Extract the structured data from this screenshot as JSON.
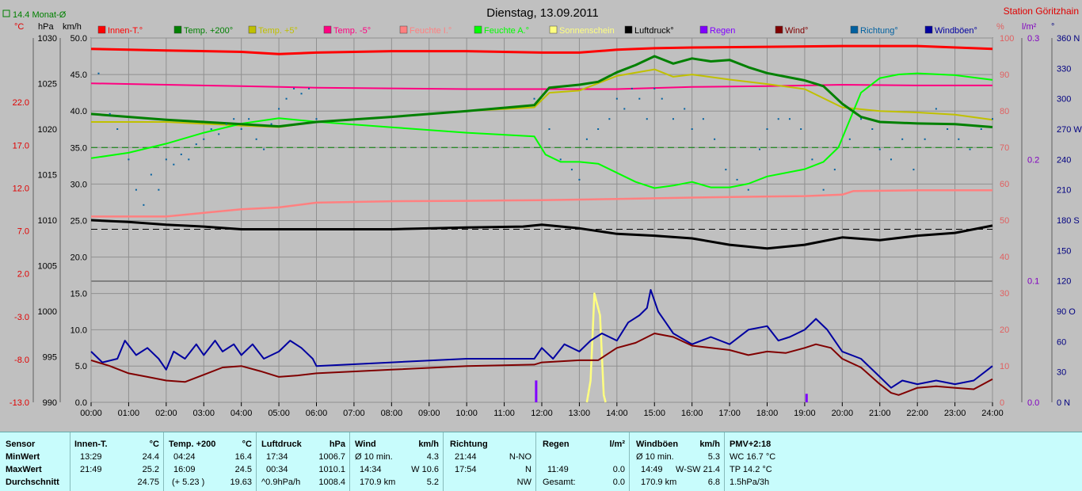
{
  "header": {
    "title": "Dienstag, 13.09.2011",
    "station": "Station Göritzhain",
    "monthly_avg": "14.4 Monat-Ø"
  },
  "units": {
    "celsius": "°C",
    "hpa": "hPa",
    "kmh": "km/h",
    "percent": "%",
    "rain": "l/m²",
    "deg": "°"
  },
  "legend": [
    {
      "label": "Innen-T.°",
      "color": "#ff0000"
    },
    {
      "label": "Temp. +200°",
      "color": "#008000"
    },
    {
      "label": "Temp. +5°",
      "color": "#c0c000"
    },
    {
      "label": "Temp. -5°",
      "color": "#ff0080"
    },
    {
      "label": "Feuchte I.°",
      "color": "#ff8080"
    },
    {
      "label": "Feuchte A.°",
      "color": "#00ff00"
    },
    {
      "label": "Sonnenschein",
      "color": "#ffff80"
    },
    {
      "label": "Luftdruck°",
      "color": "#000000"
    },
    {
      "label": "Regen",
      "color": "#8000ff"
    },
    {
      "label": "Wind°",
      "color": "#800000"
    },
    {
      "label": "Richtung°",
      "color": "#0060a0"
    },
    {
      "label": "Windböen°",
      "color": "#0000a0"
    }
  ],
  "chart_data": {
    "type": "line",
    "title": "Dienstag, 13.09.2011",
    "x_range": [
      0,
      24
    ],
    "x_ticks": [
      "00:00",
      "01:00",
      "02:00",
      "03:00",
      "04:00",
      "05:00",
      "06:00",
      "07:00",
      "08:00",
      "09:00",
      "10:00",
      "11:00",
      "12:00",
      "13:00",
      "14:00",
      "15:00",
      "16:00",
      "17:00",
      "18:00",
      "19:00",
      "20:00",
      "21:00",
      "22:00",
      "23:00",
      "24:00"
    ],
    "axes": {
      "temp_c": {
        "ticks": [
          "22.0",
          "17.0",
          "12.0",
          "7.0",
          "2.0",
          "-3.0",
          "-8.0",
          "-13.0"
        ],
        "range": [
          -13,
          29.5
        ]
      },
      "pressure_hpa": {
        "ticks": [
          "1030",
          "1025",
          "1020",
          "1015",
          "1010",
          "1005",
          "1000",
          "995",
          "990"
        ],
        "range": [
          990,
          1030
        ]
      },
      "upper_kmh": {
        "ticks": [
          "50.0",
          "45.0",
          "40.0",
          "35.0",
          "30.0",
          "25.0",
          "20.0"
        ],
        "range": [
          16.7,
          50
        ]
      },
      "lower_kmh": {
        "ticks": [
          "15.0",
          "10.0",
          "5.0",
          "0.0"
        ],
        "range": [
          0,
          16.7
        ]
      },
      "humidity_pct": {
        "ticks": [
          "100",
          "90",
          "80",
          "70",
          "60",
          "50",
          "40",
          "30",
          "20",
          "10",
          "0"
        ],
        "range": [
          0,
          100
        ]
      },
      "rain_lm2": {
        "ticks": [
          "0.3",
          "0.2",
          "0.1",
          "0.0"
        ],
        "range": [
          0,
          0.3
        ]
      },
      "direction": {
        "ticks": [
          "360 N",
          "330",
          "300",
          "270 W",
          "240",
          "210",
          "180 S",
          "150",
          "120",
          "90 O",
          "60",
          "30",
          "0 N"
        ],
        "range": [
          0,
          360
        ]
      }
    },
    "reference_lines": {
      "temp_plus5_dashed": 35.0,
      "pressure_dashed": 1009
    }
  },
  "series": {
    "innen_t": [
      [
        0,
        48.5
      ],
      [
        2,
        48.3
      ],
      [
        4,
        48.1
      ],
      [
        5,
        47.8
      ],
      [
        6,
        48.0
      ],
      [
        8,
        48.2
      ],
      [
        10,
        48.2
      ],
      [
        12,
        48.0
      ],
      [
        13,
        48.0
      ],
      [
        14,
        48.4
      ],
      [
        15,
        48.6
      ],
      [
        16,
        48.7
      ],
      [
        18,
        48.8
      ],
      [
        20,
        48.9
      ],
      [
        22,
        48.9
      ],
      [
        24,
        48.5
      ]
    ],
    "temp_200": [
      [
        0,
        39.6
      ],
      [
        1,
        39.2
      ],
      [
        2,
        38.8
      ],
      [
        3,
        38.5
      ],
      [
        4,
        38.2
      ],
      [
        5,
        37.9
      ],
      [
        6,
        38.5
      ],
      [
        8,
        39.2
      ],
      [
        10,
        40.0
      ],
      [
        11.8,
        40.8
      ],
      [
        12.2,
        43.2
      ],
      [
        13,
        43.6
      ],
      [
        13.5,
        44.0
      ],
      [
        14,
        45.3
      ],
      [
        14.5,
        46.3
      ],
      [
        15,
        47.5
      ],
      [
        15.5,
        46.5
      ],
      [
        16,
        47.2
      ],
      [
        16.5,
        46.8
      ],
      [
        17,
        47.0
      ],
      [
        17.5,
        46.0
      ],
      [
        18,
        45.2
      ],
      [
        19,
        44.2
      ],
      [
        19.5,
        43.4
      ],
      [
        20,
        41.0
      ],
      [
        20.5,
        39.2
      ],
      [
        21,
        38.5
      ],
      [
        22,
        38.3
      ],
      [
        23,
        38.2
      ],
      [
        24,
        37.8
      ]
    ],
    "temp_5": [
      [
        0,
        38.5
      ],
      [
        2,
        38.5
      ],
      [
        4,
        38.0
      ],
      [
        5,
        37.8
      ],
      [
        6,
        38.5
      ],
      [
        8,
        39.2
      ],
      [
        10,
        40.0
      ],
      [
        11.8,
        40.5
      ],
      [
        12.2,
        42.5
      ],
      [
        13,
        42.8
      ],
      [
        14,
        44.8
      ],
      [
        15,
        45.7
      ],
      [
        15.5,
        44.7
      ],
      [
        16,
        45.0
      ],
      [
        17,
        44.3
      ],
      [
        18,
        43.7
      ],
      [
        19,
        43.0
      ],
      [
        20,
        40.5
      ],
      [
        21,
        40.0
      ],
      [
        22,
        39.8
      ],
      [
        23,
        39.5
      ],
      [
        24,
        38.8
      ]
    ],
    "temp_m5": [
      [
        0,
        43.8
      ],
      [
        2,
        43.6
      ],
      [
        4,
        43.4
      ],
      [
        6,
        43.2
      ],
      [
        8,
        43.1
      ],
      [
        10,
        43.0
      ],
      [
        12,
        43.0
      ],
      [
        14,
        43.0
      ],
      [
        16,
        43.3
      ],
      [
        18,
        43.4
      ],
      [
        20,
        43.6
      ],
      [
        22,
        43.5
      ],
      [
        24,
        43.5
      ]
    ],
    "feuchte_i": [
      [
        0,
        51
      ],
      [
        1,
        51
      ],
      [
        2,
        51
      ],
      [
        3,
        52
      ],
      [
        4,
        53
      ],
      [
        5,
        53.5
      ],
      [
        6,
        54.8
      ],
      [
        8,
        55.2
      ],
      [
        10,
        55.3
      ],
      [
        12,
        55.5
      ],
      [
        14,
        55.8
      ],
      [
        16,
        56.2
      ],
      [
        18,
        56.5
      ],
      [
        19,
        56.6
      ],
      [
        20,
        57
      ],
      [
        20.3,
        58
      ],
      [
        22,
        58.2
      ],
      [
        24,
        58.2
      ]
    ],
    "feuchte_a": [
      [
        0,
        67
      ],
      [
        1,
        68.5
      ],
      [
        2,
        71
      ],
      [
        3,
        74
      ],
      [
        4,
        76.5
      ],
      [
        5,
        78
      ],
      [
        6,
        77
      ],
      [
        8,
        75.5
      ],
      [
        10,
        74
      ],
      [
        11.8,
        73
      ],
      [
        12.1,
        68
      ],
      [
        12.5,
        66
      ],
      [
        13,
        66
      ],
      [
        13.5,
        65.5
      ],
      [
        14,
        63
      ],
      [
        14.5,
        60.5
      ],
      [
        15,
        58.8
      ],
      [
        15.5,
        59.5
      ],
      [
        16,
        60.5
      ],
      [
        16.5,
        59
      ],
      [
        17,
        59
      ],
      [
        17.5,
        60
      ],
      [
        18,
        62
      ],
      [
        19,
        64
      ],
      [
        19.5,
        66
      ],
      [
        19.9,
        70
      ],
      [
        20.5,
        85
      ],
      [
        21,
        89
      ],
      [
        21.5,
        90
      ],
      [
        22,
        90.3
      ],
      [
        23,
        89.8
      ],
      [
        24,
        88.5
      ]
    ],
    "sonnenschein": [
      [
        13.2,
        0
      ],
      [
        13.3,
        3
      ],
      [
        13.4,
        15
      ],
      [
        13.55,
        12
      ],
      [
        13.65,
        1
      ],
      [
        13.7,
        0
      ]
    ],
    "luftdruck": [
      [
        0,
        1010.0
      ],
      [
        1,
        1009.8
      ],
      [
        2,
        1009.5
      ],
      [
        3,
        1009.3
      ],
      [
        4,
        1009.0
      ],
      [
        5,
        1009.0
      ],
      [
        6,
        1009.0
      ],
      [
        8,
        1009.0
      ],
      [
        10,
        1009.2
      ],
      [
        11.5,
        1009.3
      ],
      [
        12,
        1009.5
      ],
      [
        13,
        1009.1
      ],
      [
        14,
        1008.5
      ],
      [
        15,
        1008.3
      ],
      [
        16,
        1008.0
      ],
      [
        17,
        1007.3
      ],
      [
        18,
        1006.9
      ],
      [
        19,
        1007.3
      ],
      [
        20,
        1008.1
      ],
      [
        21,
        1007.8
      ],
      [
        22,
        1008.3
      ],
      [
        23,
        1008.6
      ],
      [
        24,
        1009.4
      ]
    ],
    "wind": [
      [
        0,
        5.8
      ],
      [
        0.5,
        5
      ],
      [
        1,
        4
      ],
      [
        1.5,
        3.5
      ],
      [
        2,
        3
      ],
      [
        2.5,
        2.8
      ],
      [
        3,
        3.8
      ],
      [
        3.5,
        4.8
      ],
      [
        4,
        5
      ],
      [
        4.5,
        4.3
      ],
      [
        5,
        3.5
      ],
      [
        5.5,
        3.7
      ],
      [
        6,
        4
      ],
      [
        8,
        4.5
      ],
      [
        10,
        5
      ],
      [
        11.8,
        5.2
      ],
      [
        12,
        5.5
      ],
      [
        13,
        5.8
      ],
      [
        13.5,
        5.8
      ],
      [
        14,
        7.5
      ],
      [
        14.5,
        8.2
      ],
      [
        15,
        9.5
      ],
      [
        15.5,
        9.0
      ],
      [
        16,
        7.8
      ],
      [
        17,
        7.2
      ],
      [
        17.5,
        6.5
      ],
      [
        18,
        7
      ],
      [
        18.5,
        6.8
      ],
      [
        19,
        7.5
      ],
      [
        19.3,
        8.0
      ],
      [
        19.7,
        7.5
      ],
      [
        20,
        6
      ],
      [
        20.5,
        4.8
      ],
      [
        21,
        2.5
      ],
      [
        21.3,
        1.3
      ],
      [
        21.5,
        1.0
      ],
      [
        22,
        2.0
      ],
      [
        22.5,
        2.2
      ],
      [
        23,
        2.0
      ],
      [
        23.5,
        1.8
      ],
      [
        24,
        3.2
      ]
    ],
    "windboeen": [
      [
        0,
        7
      ],
      [
        0.3,
        5.5
      ],
      [
        0.7,
        6
      ],
      [
        0.9,
        8.5
      ],
      [
        1.2,
        6.5
      ],
      [
        1.5,
        7.5
      ],
      [
        1.8,
        6
      ],
      [
        2,
        4.5
      ],
      [
        2.2,
        7
      ],
      [
        2.5,
        6
      ],
      [
        2.8,
        8
      ],
      [
        3,
        6.5
      ],
      [
        3.3,
        8.5
      ],
      [
        3.5,
        7
      ],
      [
        3.8,
        8
      ],
      [
        4,
        6.5
      ],
      [
        4.3,
        8
      ],
      [
        4.6,
        6
      ],
      [
        5,
        7
      ],
      [
        5.3,
        8.5
      ],
      [
        5.6,
        7.5
      ],
      [
        5.9,
        6
      ],
      [
        6,
        5
      ],
      [
        8,
        5.5
      ],
      [
        10,
        6
      ],
      [
        11.8,
        6
      ],
      [
        12,
        7.5
      ],
      [
        12.3,
        6
      ],
      [
        12.6,
        8
      ],
      [
        13,
        7
      ],
      [
        13.3,
        8.5
      ],
      [
        13.6,
        9.5
      ],
      [
        14,
        8.5
      ],
      [
        14.3,
        11
      ],
      [
        14.6,
        12
      ],
      [
        14.8,
        13
      ],
      [
        14.9,
        15.5
      ],
      [
        15.1,
        12.5
      ],
      [
        15.3,
        11
      ],
      [
        15.5,
        9.5
      ],
      [
        16,
        8
      ],
      [
        16.5,
        9
      ],
      [
        17,
        8
      ],
      [
        17.5,
        10
      ],
      [
        18,
        10.5
      ],
      [
        18.3,
        8.5
      ],
      [
        18.6,
        9
      ],
      [
        19,
        10
      ],
      [
        19.3,
        11.5
      ],
      [
        19.6,
        10
      ],
      [
        20,
        7
      ],
      [
        20.5,
        6
      ],
      [
        21,
        3.5
      ],
      [
        21.3,
        2
      ],
      [
        21.6,
        3
      ],
      [
        22,
        2.5
      ],
      [
        22.5,
        3
      ],
      [
        23,
        2.5
      ],
      [
        23.5,
        3
      ],
      [
        24,
        5
      ]
    ],
    "rain_bars": [
      [
        11.85,
        0.018
      ],
      [
        19.05,
        0.007
      ]
    ],
    "richtung_scatter": [
      [
        0.2,
        325
      ],
      [
        0.5,
        285
      ],
      [
        0.7,
        270
      ],
      [
        1,
        240
      ],
      [
        1.2,
        210
      ],
      [
        1.4,
        195
      ],
      [
        1.6,
        225
      ],
      [
        1.8,
        210
      ],
      [
        2,
        240
      ],
      [
        2.2,
        235
      ],
      [
        2.4,
        245
      ],
      [
        2.6,
        240
      ],
      [
        2.8,
        255
      ],
      [
        3,
        260
      ],
      [
        3.2,
        270
      ],
      [
        3.4,
        265
      ],
      [
        3.6,
        275
      ],
      [
        3.8,
        280
      ],
      [
        4,
        270
      ],
      [
        4.2,
        280
      ],
      [
        4.4,
        260
      ],
      [
        4.6,
        250
      ],
      [
        4.8,
        275
      ],
      [
        5,
        290
      ],
      [
        5.2,
        300
      ],
      [
        5.4,
        310
      ],
      [
        5.6,
        305
      ],
      [
        5.8,
        310
      ],
      [
        6,
        280
      ],
      [
        11.8,
        300
      ],
      [
        12.2,
        270
      ],
      [
        12.5,
        240
      ],
      [
        12.8,
        230
      ],
      [
        13,
        220
      ],
      [
        13.2,
        260
      ],
      [
        13.5,
        270
      ],
      [
        13.8,
        280
      ],
      [
        14,
        300
      ],
      [
        14.2,
        290
      ],
      [
        14.4,
        310
      ],
      [
        14.6,
        300
      ],
      [
        14.8,
        280
      ],
      [
        15,
        310
      ],
      [
        15.2,
        300
      ],
      [
        15.5,
        280
      ],
      [
        15.8,
        290
      ],
      [
        16,
        270
      ],
      [
        16.3,
        280
      ],
      [
        16.6,
        260
      ],
      [
        16.9,
        230
      ],
      [
        17.2,
        220
      ],
      [
        17.5,
        210
      ],
      [
        17.8,
        250
      ],
      [
        18,
        270
      ],
      [
        18.3,
        280
      ],
      [
        18.6,
        280
      ],
      [
        18.9,
        270
      ],
      [
        19.2,
        240
      ],
      [
        19.5,
        210
      ],
      [
        19.8,
        230
      ],
      [
        20.2,
        260
      ],
      [
        20.5,
        280
      ],
      [
        20.8,
        270
      ],
      [
        21,
        250
      ],
      [
        21.3,
        240
      ],
      [
        21.6,
        260
      ],
      [
        21.9,
        230
      ],
      [
        22.2,
        260
      ],
      [
        22.5,
        290
      ],
      [
        22.8,
        270
      ],
      [
        23.1,
        260
      ],
      [
        23.4,
        250
      ],
      [
        23.7,
        270
      ],
      [
        24,
        280
      ]
    ]
  },
  "table": {
    "row_labels": [
      "Sensor",
      "MinWert",
      "MaxWert",
      "Durchschnitt"
    ],
    "innen": {
      "title": "Innen-T.",
      "unit": "°C",
      "min_t": "13:29",
      "min_v": "24.4",
      "max_t": "21:49",
      "max_v": "25.2",
      "avg": "24.75"
    },
    "temp": {
      "title": "Temp. +200",
      "unit": "°C",
      "min_t": "04:24",
      "min_v": "16.4",
      "max_t": "16:09",
      "max_v": "24.5",
      "avg_note": "(+ 5.23 )",
      "avg": "19.63"
    },
    "luft": {
      "title": "Luftdruck",
      "unit": "hPa",
      "min_t": "17:34",
      "min_v": "1006.7",
      "max_t": "00:34",
      "max_v": "1010.1",
      "avg_note": "^0.9hPa/h",
      "avg": "1008.4"
    },
    "wind": {
      "title": "Wind",
      "unit": "km/h",
      "min_t": "Ø 10 min.",
      "min_v": "4.3",
      "max_t": "14:34",
      "max_v": "W 10.6",
      "avg_note": "170.9 km",
      "avg": "5.2"
    },
    "richtung": {
      "title": "Richtung",
      "min_t": "21:44",
      "min_v": "N-NO",
      "max_t": "17:54",
      "max_v": "N",
      "avg": "NW"
    },
    "regen": {
      "title": "Regen",
      "unit": "l/m²",
      "max_t": "11:49",
      "max_v": "0.0",
      "avg_note": "Gesamt:",
      "avg": "0.0"
    },
    "boeen": {
      "title": "Windböen",
      "unit": "km/h",
      "min_t": "Ø 10 min.",
      "min_v": "5.3",
      "max_t": "14:49",
      "max_v": "W-SW 21.4",
      "avg_note": "170.9 km",
      "avg": "6.8"
    },
    "pmv": {
      "title": "PMV+2:18",
      "l1": "WC 16.7 °C",
      "l2": "TP 14.2 °C",
      "l3": "1.5hPa/3h"
    }
  }
}
